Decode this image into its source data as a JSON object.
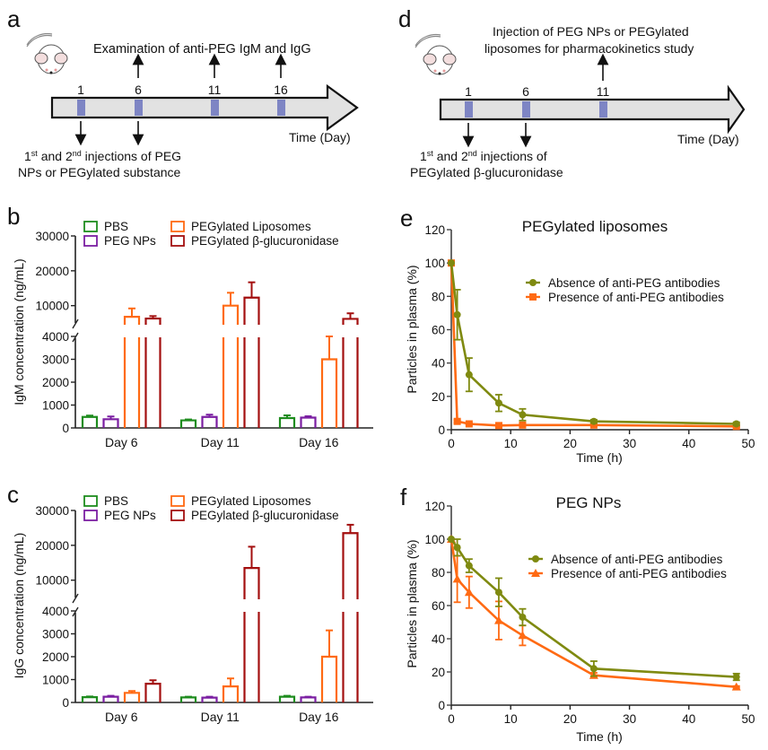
{
  "panels": {
    "a": {
      "letter": "a",
      "top_text": "Examination  of anti-PEG IgM and IgG",
      "days": [
        "1",
        "6",
        "11",
        "16"
      ],
      "up_arrow_days": [
        "6",
        "11",
        "16"
      ],
      "down_arrow_days": [
        "1",
        "6"
      ],
      "time_label": "Time (Day)",
      "bottom_line1_parts": [
        "1",
        "st",
        " and 2",
        "nd",
        " injections of PEG"
      ],
      "bottom_line2": "NPs or PEGylated substance"
    },
    "d": {
      "letter": "d",
      "top_line1": "Injection of PEG NPs or PEGylated",
      "top_line2": "liposomes for pharmacokinetics study",
      "days": [
        "1",
        "6",
        "11"
      ],
      "up_arrow_days": [
        "11"
      ],
      "down_arrow_days": [
        "1",
        "6"
      ],
      "time_label": "Time (Day)",
      "bottom_line1_parts": [
        "1",
        "st",
        " and 2",
        "nd",
        " injections of"
      ],
      "bottom_line2": "PEGylated β-glucuronidase"
    }
  },
  "colors": {
    "PBS": "#1e8c1e",
    "PEG NPs": "#7b1fa2",
    "PEGylated Liposomes": "#ff6a13",
    "PEGylated β-glucuronidase": "#a30f0f",
    "absence": "#7f8a10",
    "presence": "#ff6a13",
    "timeline_fill": "#e2e2e2",
    "timeline_marker": "#7e85c4"
  },
  "chart_data": [
    {
      "id": "b",
      "letter": "b",
      "type": "bar",
      "ylabel": "IgM concentration (ng/mL)",
      "categories": [
        "Day 6",
        "Day 11",
        "Day 16"
      ],
      "axis_break": {
        "lower": [
          0,
          4000
        ],
        "upper": [
          4000,
          30000
        ]
      },
      "lower_ticks": [
        "0",
        "1000",
        "2000",
        "3000",
        "4000"
      ],
      "upper_ticks": [
        "10000",
        "20000",
        "30000"
      ],
      "legend": [
        "PBS",
        "PEG NPs",
        "PEGylated Liposomes",
        "PEGylated β-glucuronidase"
      ],
      "series": [
        {
          "name": "PBS",
          "values": [
            480,
            330,
            430
          ],
          "errors": [
            60,
            40,
            120
          ]
        },
        {
          "name": "PEG NPs",
          "values": [
            380,
            480,
            450
          ],
          "errors": [
            120,
            100,
            60
          ]
        },
        {
          "name": "PEGylated Liposomes",
          "values": [
            6800,
            10000,
            3000
          ],
          "errors": [
            2400,
            3700,
            1400
          ]
        },
        {
          "name": "PEGylated β-glucuronidase",
          "values": [
            6300,
            12300,
            6200
          ],
          "errors": [
            700,
            4400,
            1600
          ]
        }
      ]
    },
    {
      "id": "c",
      "letter": "c",
      "type": "bar",
      "ylabel": "IgG concentration (ng/mL)",
      "categories": [
        "Day 6",
        "Day 11",
        "Day 16"
      ],
      "axis_break": {
        "lower": [
          0,
          4000
        ],
        "upper": [
          4000,
          30000
        ]
      },
      "lower_ticks": [
        "0",
        "1000",
        "2000",
        "3000",
        "4000"
      ],
      "upper_ticks": [
        "10000",
        "20000",
        "30000"
      ],
      "legend": [
        "PBS",
        "PEG NPs",
        "PEGylated Liposomes",
        "PEGylated β-glucuronidase"
      ],
      "series": [
        {
          "name": "PBS",
          "values": [
            230,
            220,
            250
          ],
          "errors": [
            30,
            30,
            40
          ]
        },
        {
          "name": "PEG NPs",
          "values": [
            250,
            210,
            220
          ],
          "errors": [
            40,
            40,
            30
          ]
        },
        {
          "name": "PEGylated Liposomes",
          "values": [
            420,
            700,
            2000
          ],
          "errors": [
            80,
            350,
            1150
          ]
        },
        {
          "name": "PEGylated β-glucuronidase",
          "values": [
            820,
            13500,
            23500
          ],
          "errors": [
            150,
            6100,
            2400
          ]
        }
      ]
    },
    {
      "id": "e",
      "letter": "e",
      "type": "line",
      "title": "PEGylated liposomes",
      "xlabel": "Time (h)",
      "ylabel": "Particles in plasma (%)",
      "xlim": [
        0,
        50
      ],
      "ylim": [
        0,
        120
      ],
      "xticks": [
        "0",
        "10",
        "20",
        "30",
        "40",
        "50"
      ],
      "yticks": [
        "0",
        "20",
        "40",
        "60",
        "80",
        "100",
        "120"
      ],
      "legend_position": "right",
      "series": [
        {
          "name": "Absence of anti-PEG antibodies",
          "marker": "circle",
          "x": [
            0,
            1,
            3,
            8,
            12,
            24,
            48
          ],
          "y": [
            100,
            69,
            33,
            16,
            9,
            5,
            3.5
          ],
          "errors": [
            0,
            15,
            10,
            5,
            3.5,
            1,
            1
          ]
        },
        {
          "name": "Presence of anti-PEG antibodies",
          "marker": "square",
          "x": [
            0,
            1,
            3,
            8,
            12,
            24,
            48
          ],
          "y": [
            100,
            5,
            3.5,
            2.5,
            2.8,
            2.8,
            2
          ],
          "errors": [
            0,
            0.8,
            0.5,
            0.5,
            0.5,
            0.5,
            0.5
          ]
        }
      ]
    },
    {
      "id": "f",
      "letter": "f",
      "type": "line",
      "title": "PEG NPs",
      "xlabel": "Time (h)",
      "ylabel": "Particles in plasma (%)",
      "xlim": [
        0,
        50
      ],
      "ylim": [
        0,
        120
      ],
      "xticks": [
        "0",
        "10",
        "20",
        "30",
        "40",
        "50"
      ],
      "yticks": [
        "0",
        "20",
        "40",
        "60",
        "80",
        "100",
        "120"
      ],
      "legend_position": "right",
      "series": [
        {
          "name": "Absence of anti-PEG antibodies",
          "marker": "circle",
          "x": [
            0,
            1,
            3,
            8,
            12,
            24,
            48
          ],
          "y": [
            100,
            95,
            84,
            68,
            53,
            22,
            17
          ],
          "errors": [
            0,
            5,
            4,
            8.5,
            5,
            4.5,
            2
          ]
        },
        {
          "name": "Presence of anti-PEG antibodies",
          "marker": "triangle",
          "x": [
            0,
            1,
            3,
            8,
            12,
            24,
            48
          ],
          "y": [
            100,
            76,
            68,
            51,
            42,
            18,
            11
          ],
          "errors": [
            0,
            14,
            9.5,
            11.5,
            6,
            1.5,
            0.5
          ]
        }
      ]
    }
  ]
}
